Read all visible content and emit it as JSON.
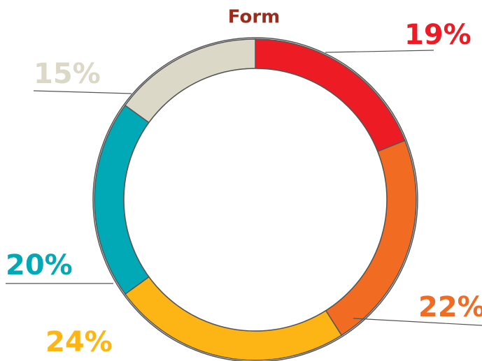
{
  "chart_data": {
    "type": "pie",
    "donut": true,
    "title": "Form",
    "categories": [
      null,
      null,
      null,
      null,
      null
    ],
    "values": [
      19,
      22,
      24,
      20,
      15
    ],
    "value_labels": [
      "19%",
      "22%",
      "24%",
      "20%",
      "15%"
    ],
    "colors": [
      "#ed1c24",
      "#f26b22",
      "#fdb515",
      "#00a9b5",
      "#dcd8c8"
    ]
  }
}
